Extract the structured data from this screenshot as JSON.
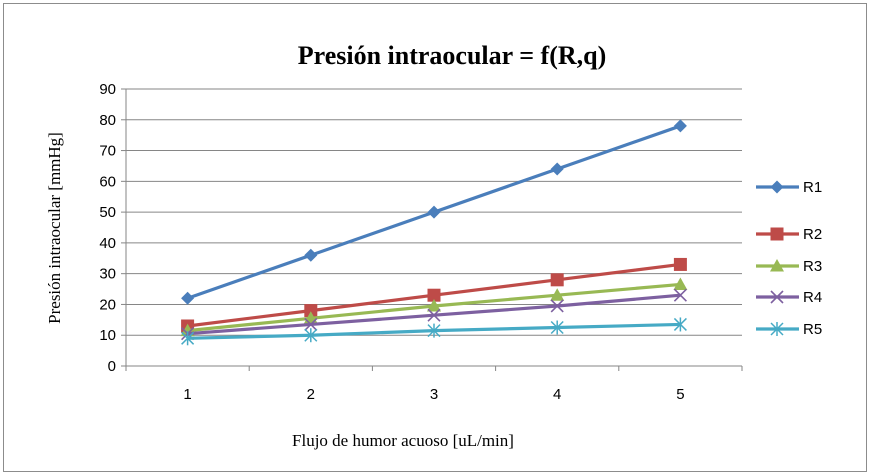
{
  "chart_data": {
    "type": "line",
    "title": "Presión intraocular = f(R,q)",
    "xlabel": "Flujo de humor acuoso [uL/min]",
    "ylabel": "Presión intraocular [mmHg]",
    "categories": [
      "1",
      "2",
      "3",
      "4",
      "5"
    ],
    "x": [
      1,
      2,
      3,
      4,
      5
    ],
    "ylim": [
      0,
      90
    ],
    "yticks": [
      0,
      10,
      20,
      30,
      40,
      50,
      60,
      70,
      80,
      90
    ],
    "grid": "horizontal",
    "legend_position": "right",
    "series": [
      {
        "name": "R1",
        "values": [
          22,
          36,
          50,
          64,
          78
        ],
        "color": "#4a7ebb",
        "marker": "diamond"
      },
      {
        "name": "R2",
        "values": [
          13,
          18,
          23,
          28,
          33
        ],
        "color": "#be4b48",
        "marker": "square"
      },
      {
        "name": "R3",
        "values": [
          11.5,
          15.5,
          19.5,
          23,
          26.5
        ],
        "color": "#98b954",
        "marker": "triangle"
      },
      {
        "name": "R4",
        "values": [
          10.5,
          13.5,
          16.5,
          19.5,
          23
        ],
        "color": "#7d60a0",
        "marker": "x"
      },
      {
        "name": "R5",
        "values": [
          9,
          10,
          11.5,
          12.5,
          13.5
        ],
        "color": "#46aac5",
        "marker": "asterisk"
      }
    ]
  }
}
